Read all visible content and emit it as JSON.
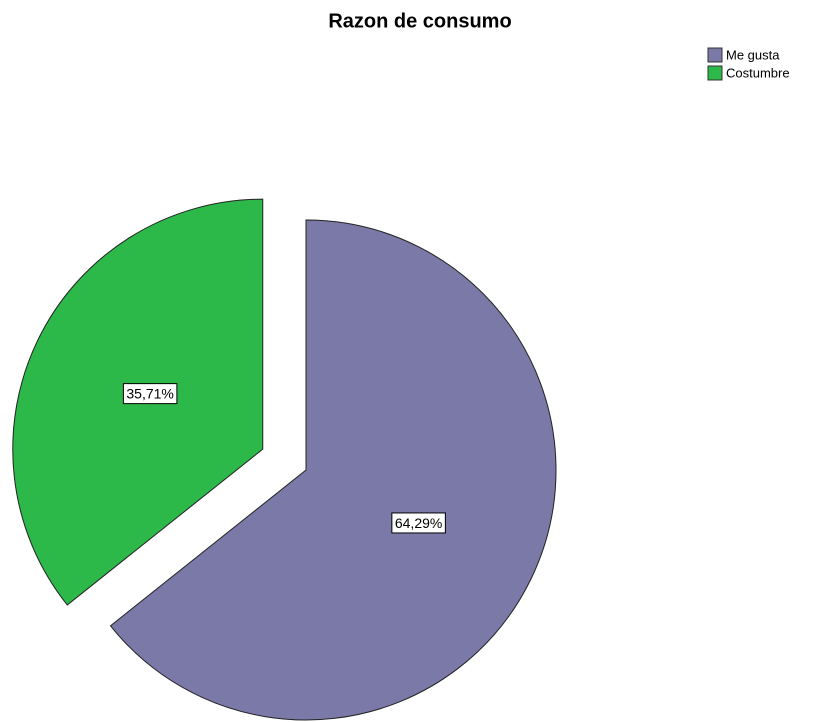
{
  "chart_data": {
    "type": "pie",
    "title": "Razon de consumo",
    "categories": [
      "Me gusta",
      "Costumbre"
    ],
    "values": [
      64.29,
      35.71
    ],
    "value_labels": [
      "64,29%",
      "35,71%"
    ],
    "colors": [
      "#7a79a7",
      "#2db84a"
    ],
    "explode": [
      false,
      true
    ],
    "legend": "top-right"
  }
}
